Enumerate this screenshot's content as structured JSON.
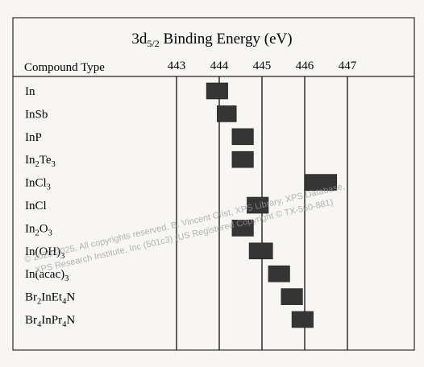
{
  "chart_data": {
    "type": "range-bar",
    "title": {
      "main": "3d",
      "sub": "5/2",
      "rest": " Binding Energy (eV)"
    },
    "category_header": "Compound Type",
    "xlim": [
      443,
      447
    ],
    "x_ticks": [
      "443",
      "444",
      "445",
      "446",
      "447"
    ],
    "tick_values": [
      443,
      444,
      445,
      446,
      447
    ],
    "rows": [
      {
        "label": [
          {
            "t": "In"
          }
        ],
        "start": 443.7,
        "end": 444.2
      },
      {
        "label": [
          {
            "t": "InSb"
          }
        ],
        "start": 443.95,
        "end": 444.4
      },
      {
        "label": [
          {
            "t": "InP"
          }
        ],
        "start": 444.3,
        "end": 444.8
      },
      {
        "label": [
          {
            "t": "In"
          },
          {
            "s": "2"
          },
          {
            "t": "Te"
          },
          {
            "s": "3"
          }
        ],
        "start": 444.3,
        "end": 444.8
      },
      {
        "label": [
          {
            "t": "InCl"
          },
          {
            "s": "3"
          }
        ],
        "start": 446.0,
        "end": 446.75
      },
      {
        "label": [
          {
            "t": "InCl"
          }
        ],
        "start": 444.65,
        "end": 445.15
      },
      {
        "label": [
          {
            "t": "In"
          },
          {
            "s": "2"
          },
          {
            "t": "O"
          },
          {
            "s": "3"
          }
        ],
        "start": 444.3,
        "end": 444.8
      },
      {
        "label": [
          {
            "t": "In(OH)"
          },
          {
            "s": "3"
          }
        ],
        "start": 444.7,
        "end": 445.25
      },
      {
        "label": [
          {
            "t": "In(acac)"
          },
          {
            "s": "3"
          }
        ],
        "start": 445.15,
        "end": 445.65
      },
      {
        "label": [
          {
            "t": "Br"
          },
          {
            "s": "2"
          },
          {
            "t": "InEt"
          },
          {
            "s": "4"
          },
          {
            "t": "N"
          }
        ],
        "start": 445.45,
        "end": 445.95
      },
      {
        "label": [
          {
            "t": "Br"
          },
          {
            "s": "4"
          },
          {
            "t": "InPr"
          },
          {
            "s": "4"
          },
          {
            "t": "N"
          }
        ],
        "start": 445.7,
        "end": 446.2
      }
    ],
    "bar_color": "#353535"
  },
  "watermark": {
    "line1": "© 2020-2025,  All copyrights reserved,   B. Vincent Crist,  XPS Library, XPS Database,",
    "line2": "XPS Research Institute, Inc (501c3)   (US Registered Copyright © TX-560-881)"
  }
}
